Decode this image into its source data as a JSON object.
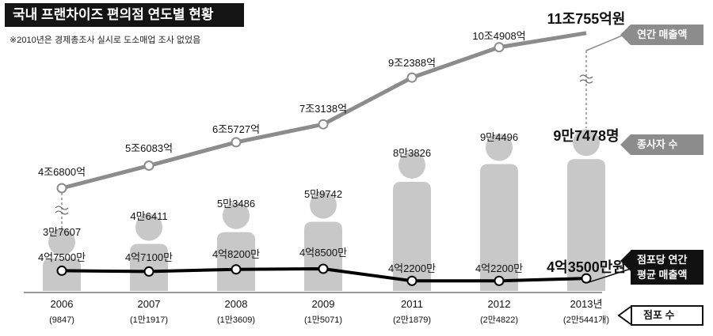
{
  "title": "국내 프랜차이즈 편의점 연도별 현황",
  "note": "※2010년은 경제총조사 실시로 도소매업 조사 없었음",
  "legend": {
    "sales": "연간 매출액",
    "employees": "종사자 수",
    "avg_sales_line1": "점포당 연간",
    "avg_sales_line2": "평균 매출액",
    "stores": "점포 수"
  },
  "colors": {
    "gray_line": "#8c8c8c",
    "figure": "#c8c8c8",
    "black_line": "#000000",
    "dark_tag": "#111111",
    "gray_tag": "#8c8c8c"
  },
  "chart_data": {
    "type": "line",
    "categories": [
      "2006",
      "2007",
      "2008",
      "2009",
      "2011",
      "2012",
      "2013년"
    ],
    "store_counts": [
      "(9847)",
      "(1만1917)",
      "(1만3609)",
      "(1만5071)",
      "(2만1879)",
      "(2만4822)",
      "(2만5441개)"
    ],
    "series": [
      {
        "name": "연간 매출액",
        "values": [
          46800,
          56083,
          65727,
          73138,
          92388,
          104908,
          110755
        ],
        "labels": [
          "4조6800억",
          "5조6083억",
          "6조5727억",
          "7조3138억",
          "9조2388억",
          "10조4908억",
          "11조755억원"
        ]
      },
      {
        "name": "종사자 수",
        "values": [
          37607,
          46411,
          53486,
          59742,
          83826,
          94496,
          97478
        ],
        "labels": [
          "3만7607",
          "4만6411",
          "5만3486",
          "5만9742",
          "8만3826",
          "9만4496",
          "9만7478명"
        ]
      },
      {
        "name": "점포당 연간 평균 매출액",
        "values": [
          47500,
          47100,
          48200,
          48500,
          42200,
          42200,
          43500
        ],
        "labels": [
          "4억7500만",
          "4억7100만",
          "4억8200만",
          "4억8500만",
          "4억2200만",
          "4억2200만",
          "4억3500만원"
        ]
      }
    ]
  }
}
